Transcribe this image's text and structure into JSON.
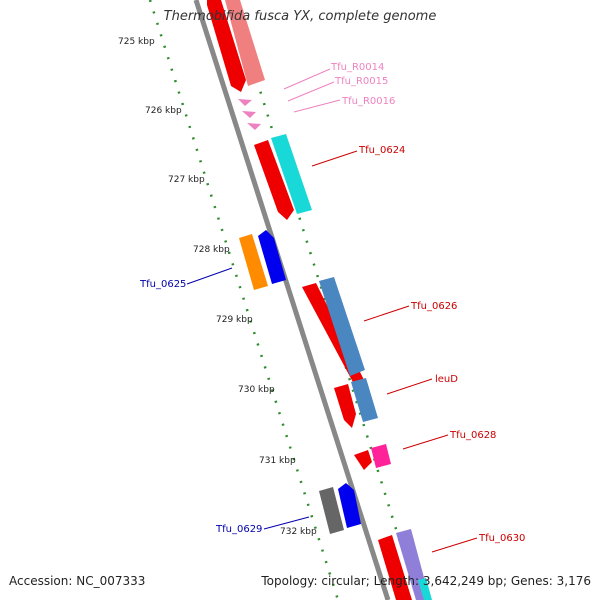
{
  "title": "Thermobifida fusca YX, complete genome",
  "footer": {
    "accession": "Accession: NC_007333",
    "summary": "Topology: circular; Length: 3,642,249 bp; Genes: 3,176"
  },
  "colors": {
    "backbone": "#888888",
    "kbp_ticks": "#2e8b2e",
    "forward_label": "#cc0000",
    "rna_label": "#ee82c0",
    "reverse_label": "#0000aa"
  },
  "kbp_labels": [
    "725 kbp",
    "726 kbp",
    "727 kbp",
    "728 kbp",
    "729 kbp",
    "730 kbp",
    "731 kbp",
    "732 kbp"
  ],
  "genes": {
    "tfu_r0014": "Tfu_R0014",
    "tfu_r0015": "Tfu_R0015",
    "tfu_r0016": "Tfu_R0016",
    "tfu_0624": "Tfu_0624",
    "tfu_0625": "Tfu_0625",
    "tfu_0626": "Tfu_0626",
    "leud": "leuD",
    "tfu_0628": "Tfu_0628",
    "tfu_0629": "Tfu_0629",
    "tfu_0630": "Tfu_0630"
  }
}
